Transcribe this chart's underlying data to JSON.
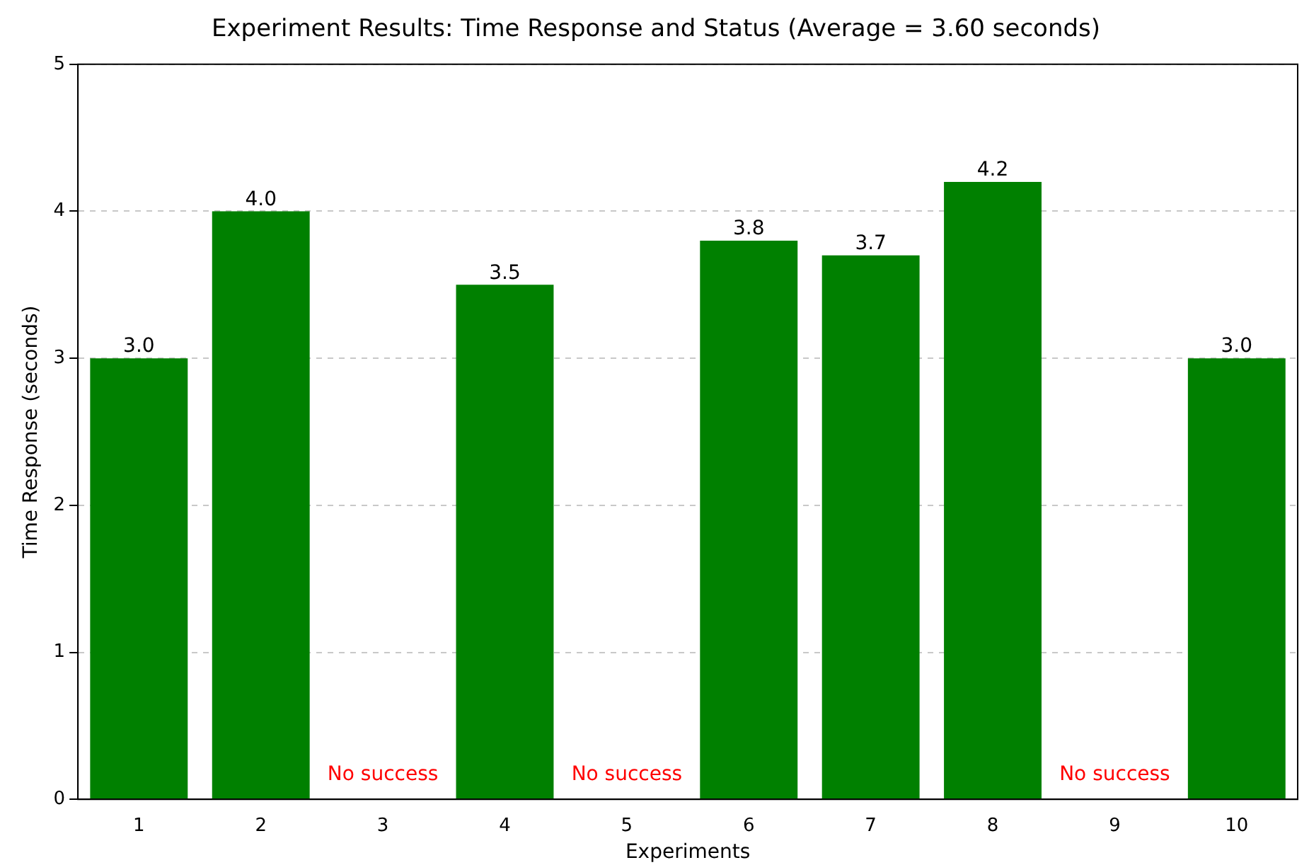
{
  "chart_data": {
    "type": "bar",
    "title": "Experiment Results: Time Response and Status (Average = 3.60 seconds)",
    "xlabel": "Experiments",
    "ylabel": "Time Response (seconds)",
    "categories": [
      "1",
      "2",
      "3",
      "4",
      "5",
      "6",
      "7",
      "8",
      "9",
      "10"
    ],
    "values": [
      3.0,
      4.0,
      null,
      3.5,
      null,
      3.8,
      3.7,
      4.2,
      null,
      3.0
    ],
    "value_labels": [
      "3.0",
      "4.0",
      null,
      "3.5",
      null,
      "3.8",
      "3.7",
      "4.2",
      null,
      "3.0"
    ],
    "color": "#008000",
    "ylim": [
      0,
      5
    ],
    "yticks": [
      0,
      1,
      2,
      3,
      4,
      5
    ],
    "grid": "y",
    "legend": false,
    "annotations": [
      "No success",
      "No success",
      "No success"
    ]
  }
}
